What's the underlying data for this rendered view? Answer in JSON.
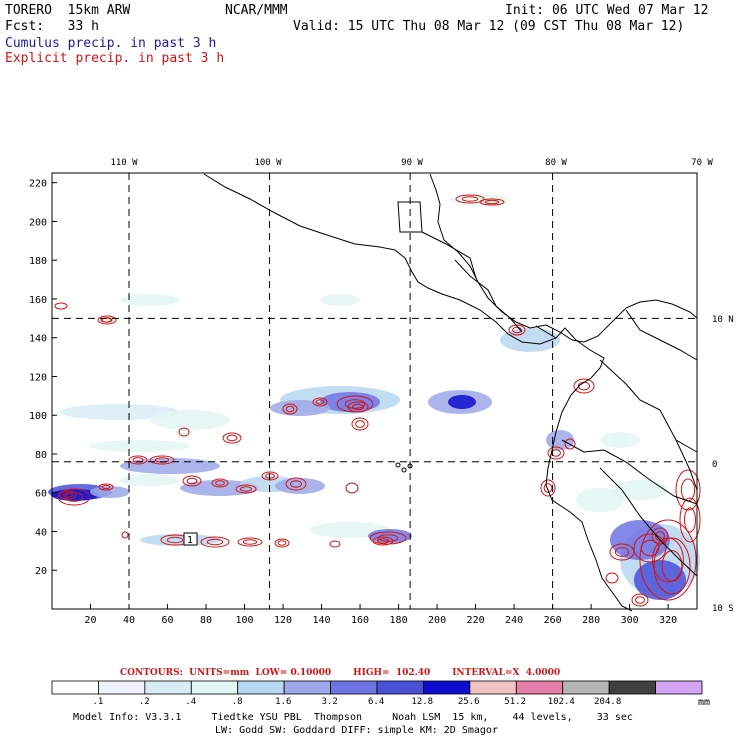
{
  "header": {
    "model": "TORERO  15km ARW",
    "org": "NCAR/MMM",
    "init": "Init: 06 UTC Wed 07 Mar 12",
    "fcst": "Fcst:   33 h",
    "valid": "Valid: 15 UTC Thu 08 Mar 12 (09 CST Thu 08 Mar 12)",
    "field1": "Cumulus precip. in past 3 h",
    "field2": "Explicit precip. in past 3 h"
  },
  "colors": {
    "blue_label": "#1a1aa6",
    "red_label": "#d21414",
    "contour": "#d21414",
    "coast": "#000000"
  },
  "map": {
    "top_lon_labels": [
      "110 W",
      "100 W",
      "90 W",
      "80 W",
      "70 W"
    ],
    "right_lat_labels": [
      "10 N",
      "0",
      "10 S"
    ],
    "x_ticks": [
      "20",
      "40",
      "60",
      "80",
      "100",
      "120",
      "140",
      "160",
      "180",
      "200",
      "220",
      "240",
      "260",
      "280",
      "300",
      "320"
    ],
    "y_ticks": [
      "20",
      "40",
      "60",
      "80",
      "100",
      "120",
      "140",
      "160",
      "180",
      "200",
      "220"
    ],
    "x_range": [
      0,
      335
    ],
    "y_range": [
      0,
      225
    ],
    "gridlines_x": [
      40,
      113,
      186,
      260
    ],
    "gridlines_y": [
      76,
      150
    ],
    "station_marker": "1"
  },
  "legend": {
    "contours_text": "CONTOURS:  UNITS=mm  LOW= 0.10000       HIGH=  102.40       INTERVAL=X  4.0000",
    "unit": "mm",
    "bins": [
      {
        "label": ".1",
        "color": "#ffffff"
      },
      {
        "label": ".2",
        "color": "#eef3fb"
      },
      {
        "label": ".4",
        "color": "#d8ecf6"
      },
      {
        "label": ".8",
        "color": "#e2f6f2"
      },
      {
        "label": "1.6",
        "color": "#b7d6ef"
      },
      {
        "label": "3.2",
        "color": "#9ea8e8"
      },
      {
        "label": "6.4",
        "color": "#6e74e4"
      },
      {
        "label": "12.8",
        "color": "#4a50d8"
      },
      {
        "label": "25.6",
        "color": "#0d0dd0"
      },
      {
        "label": "51.2",
        "color": "#f3c3c3"
      },
      {
        "label": "102.4",
        "color": "#e47faa"
      },
      {
        "label": "204.8",
        "color": "#b4b4b4"
      },
      {
        "label": "",
        "color": "#404040"
      },
      {
        "label": "",
        "color": "#d4a4f4"
      }
    ]
  },
  "footer": {
    "line1": "Model Info: V3.3.1     Tiedtke YSU PBL  Thompson     Noah LSM  15 km,    44 levels,    33 sec",
    "line2": "LW: Godd SW: Goddard DIFF: simple KM: 2D Smagor"
  }
}
